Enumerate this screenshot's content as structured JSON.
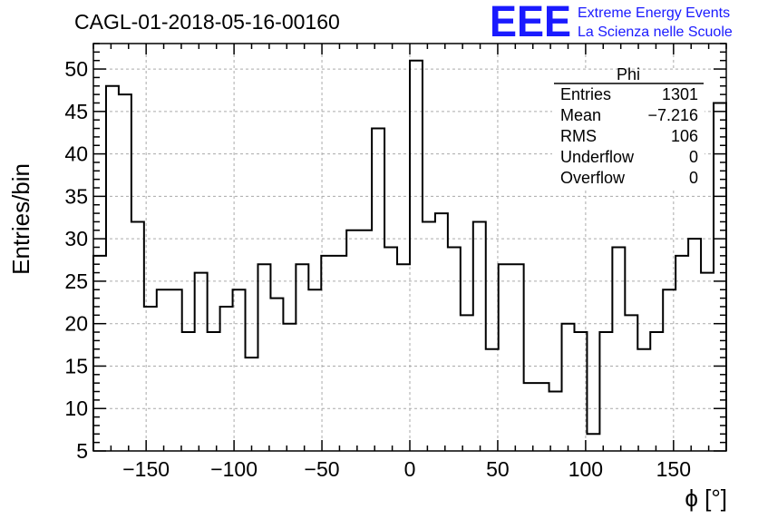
{
  "chart_title": "CAGL-01-2018-05-16-00160",
  "logo": {
    "mark": "EEE",
    "line1": "Extreme Energy Events",
    "line2": "La Scienza nelle Scuole",
    "color": "#1a1aff"
  },
  "stats_box": {
    "title": "Phi",
    "rows": [
      {
        "label": "Entries",
        "value": "1301"
      },
      {
        "label": "Mean",
        "value": "−7.216"
      },
      {
        "label": "RMS",
        "value": "106"
      },
      {
        "label": "Underflow",
        "value": "0"
      },
      {
        "label": "Overflow",
        "value": "0"
      }
    ]
  },
  "chart_data": {
    "type": "histogram",
    "title": "CAGL-01-2018-05-16-00160",
    "xlabel": "ϕ [°]",
    "ylabel": "Entries/bin",
    "xlim": [
      -180,
      180
    ],
    "ylim": [
      5,
      53
    ],
    "bin_width": 7.2,
    "x_ticks": [
      -150,
      -100,
      -50,
      0,
      50,
      100,
      150
    ],
    "x_tick_labels": [
      "−150",
      "−100",
      "−50",
      "0",
      "50",
      "100",
      "150"
    ],
    "y_ticks": [
      5,
      10,
      15,
      20,
      25,
      30,
      35,
      40,
      45,
      50
    ],
    "y_tick_labels": [
      "5",
      "10",
      "15",
      "20",
      "25",
      "30",
      "35",
      "40",
      "45",
      "50"
    ],
    "grid": true,
    "values": [
      28,
      48,
      47,
      32,
      22,
      24,
      24,
      19,
      26,
      19,
      22,
      24,
      16,
      27,
      23,
      20,
      27,
      24,
      28,
      28,
      31,
      31,
      43,
      29,
      27,
      51,
      32,
      33,
      29,
      21,
      32,
      17,
      27,
      27,
      13,
      13,
      12,
      20,
      19,
      7,
      19,
      29,
      21,
      17,
      19,
      24,
      28,
      30,
      26,
      46
    ],
    "line_color": "#000000"
  }
}
